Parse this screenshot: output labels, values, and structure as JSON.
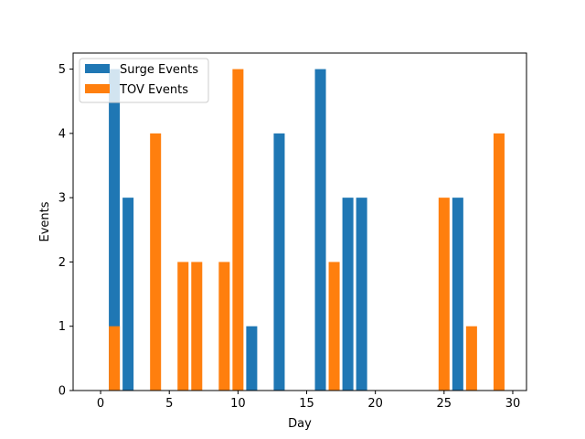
{
  "chart_data": {
    "type": "bar",
    "title": "",
    "xlabel": "Day",
    "ylabel": "Events",
    "xlim": [
      -2,
      31
    ],
    "ylim": [
      0,
      5.25
    ],
    "xticks": [
      0,
      5,
      10,
      15,
      20,
      25,
      30
    ],
    "yticks": [
      0,
      1,
      2,
      3,
      4,
      5
    ],
    "grid": false,
    "legend_position": "top-left",
    "bar_width": 0.8,
    "series": [
      {
        "name": "Surge Events",
        "color": "#1f77b4",
        "points": [
          {
            "x": 1,
            "y": 5
          },
          {
            "x": 2,
            "y": 3
          },
          {
            "x": 11,
            "y": 1
          },
          {
            "x": 13,
            "y": 4
          },
          {
            "x": 16,
            "y": 5
          },
          {
            "x": 18,
            "y": 3
          },
          {
            "x": 19,
            "y": 3
          },
          {
            "x": 26,
            "y": 3
          }
        ]
      },
      {
        "name": "TOV Events",
        "color": "#ff7f0e",
        "points": [
          {
            "x": 1,
            "y": 1
          },
          {
            "x": 4,
            "y": 4
          },
          {
            "x": 6,
            "y": 2
          },
          {
            "x": 7,
            "y": 2
          },
          {
            "x": 9,
            "y": 2
          },
          {
            "x": 10,
            "y": 5
          },
          {
            "x": 17,
            "y": 2
          },
          {
            "x": 25,
            "y": 3
          },
          {
            "x": 27,
            "y": 1
          },
          {
            "x": 29,
            "y": 4
          }
        ]
      }
    ]
  }
}
